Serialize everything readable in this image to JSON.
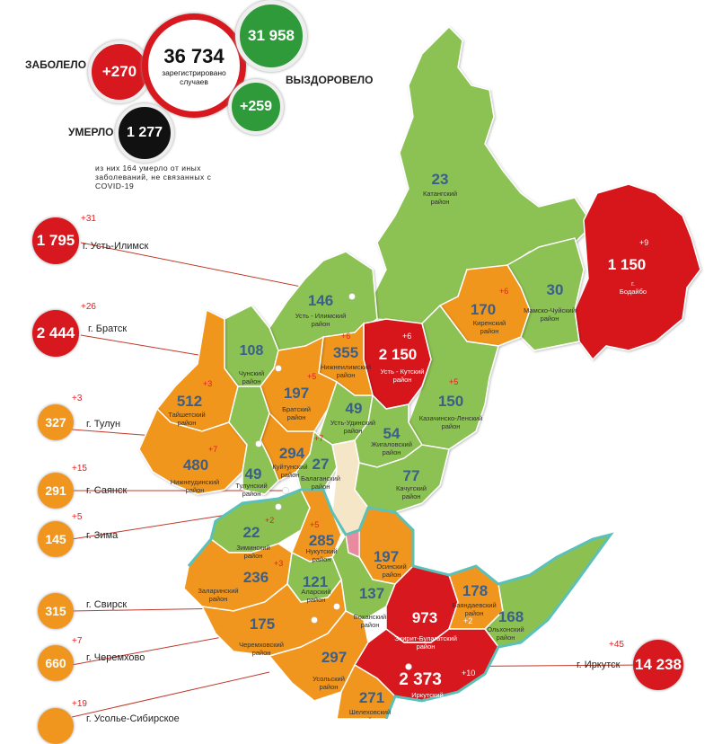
{
  "summary": {
    "infected_label": "ЗАБОЛЕЛО",
    "infected_new": "+270",
    "total": "36 734",
    "total_caption": "зарегистрировано случаев",
    "recovered_total": "31 958",
    "recovered_new": "+259",
    "recovered_label": "ВЫЗДОРОВЕЛО",
    "died_label": "УМЕРЛО",
    "died_total": "1 277",
    "died_note": "из них 164 умерло от иных заболеваний, не связанных с COVID-19"
  },
  "cities": [
    {
      "name": "г. Усть-Илимск",
      "value": "1 795",
      "delta": "+31",
      "color": "#d7191f"
    },
    {
      "name": "г. Братск",
      "value": "2 444",
      "delta": "+26",
      "color": "#d7191f"
    },
    {
      "name": "г. Тулун",
      "value": "327",
      "delta": "+3",
      "color": "#f0961e"
    },
    {
      "name": "г. Саянск",
      "value": "291",
      "delta": "+15",
      "color": "#f0961e"
    },
    {
      "name": "г. Зима",
      "value": "145",
      "delta": "+5",
      "color": "#f0961e"
    },
    {
      "name": "г. Свирск",
      "value": "315",
      "delta": "",
      "color": "#f0961e"
    },
    {
      "name": "г. Черемхово",
      "value": "660",
      "delta": "+7",
      "color": "#f0961e"
    },
    {
      "name": "г. Усолье-Сибирское",
      "value": "",
      "delta": "+19",
      "color": "#f0961e"
    },
    {
      "name": "г. Иркутск",
      "value": "14 238",
      "delta": "+45",
      "color": "#d7191f"
    }
  ],
  "districts": [
    {
      "value": "23",
      "name": "Катангский район",
      "delta": ""
    },
    {
      "value": "1 150",
      "name": "г. Бодайбо",
      "delta": "+9"
    },
    {
      "value": "146",
      "name": "Усть - Илимский район",
      "delta": ""
    },
    {
      "value": "170",
      "name": "Киренский район",
      "delta": "+6"
    },
    {
      "value": "30",
      "name": "Мамско-Чуйский район",
      "delta": ""
    },
    {
      "value": "108",
      "name": "Чунский район",
      "delta": ""
    },
    {
      "value": "355",
      "name": "Нижнеилимский район",
      "delta": "+6"
    },
    {
      "value": "2 150",
      "name": "Усть - Кутский район",
      "delta": "+6"
    },
    {
      "value": "512",
      "name": "Тайшетский район",
      "delta": "+3"
    },
    {
      "value": "197",
      "name": "Братский район",
      "delta": "+5"
    },
    {
      "value": "49",
      "name": "Усть-Удинский район",
      "delta": ""
    },
    {
      "value": "150",
      "name": "Казачинско-Ленский район",
      "delta": "+5"
    },
    {
      "value": "480",
      "name": "Нижнеудинский район",
      "delta": "+7"
    },
    {
      "value": "294",
      "name": "Куйтунский район",
      "delta": "+7"
    },
    {
      "value": "54",
      "name": "Жигаловский район",
      "delta": ""
    },
    {
      "value": "49",
      "name": "Тулунский район",
      "delta": ""
    },
    {
      "value": "27",
      "name": "Балаганский район",
      "delta": ""
    },
    {
      "value": "77",
      "name": "Качугский район",
      "delta": ""
    },
    {
      "value": "22",
      "name": "Зиминский район",
      "delta": "+2"
    },
    {
      "value": "285",
      "name": "Нукутский район",
      "delta": "+5"
    },
    {
      "value": "197",
      "name": "Осинский район",
      "delta": ""
    },
    {
      "value": "236",
      "name": "Заларинский район",
      "delta": "+3"
    },
    {
      "value": "121",
      "name": "Аларский район",
      "delta": ""
    },
    {
      "value": "137",
      "name": "Боханский район",
      "delta": ""
    },
    {
      "value": "178",
      "name": "Баяндаевский район",
      "delta": ""
    },
    {
      "value": "973",
      "name": "Эхирит-Булагатский район",
      "delta": "+2"
    },
    {
      "value": "168",
      "name": "Ольхонский район",
      "delta": ""
    },
    {
      "value": "175",
      "name": "Черемховский район",
      "delta": ""
    },
    {
      "value": "297",
      "name": "Усольский район",
      "delta": ""
    },
    {
      "value": "2 373",
      "name": "Иркутский район",
      "delta": "+10"
    },
    {
      "value": "271",
      "name": "Шелеховский район",
      "delta": ""
    }
  ],
  "colors": {
    "green": "#8cc152",
    "orange": "#f0961e",
    "red": "#d7191f",
    "dark_green": "#2e9a3a",
    "black": "#111111",
    "number_blue": "#3a5f8a"
  }
}
